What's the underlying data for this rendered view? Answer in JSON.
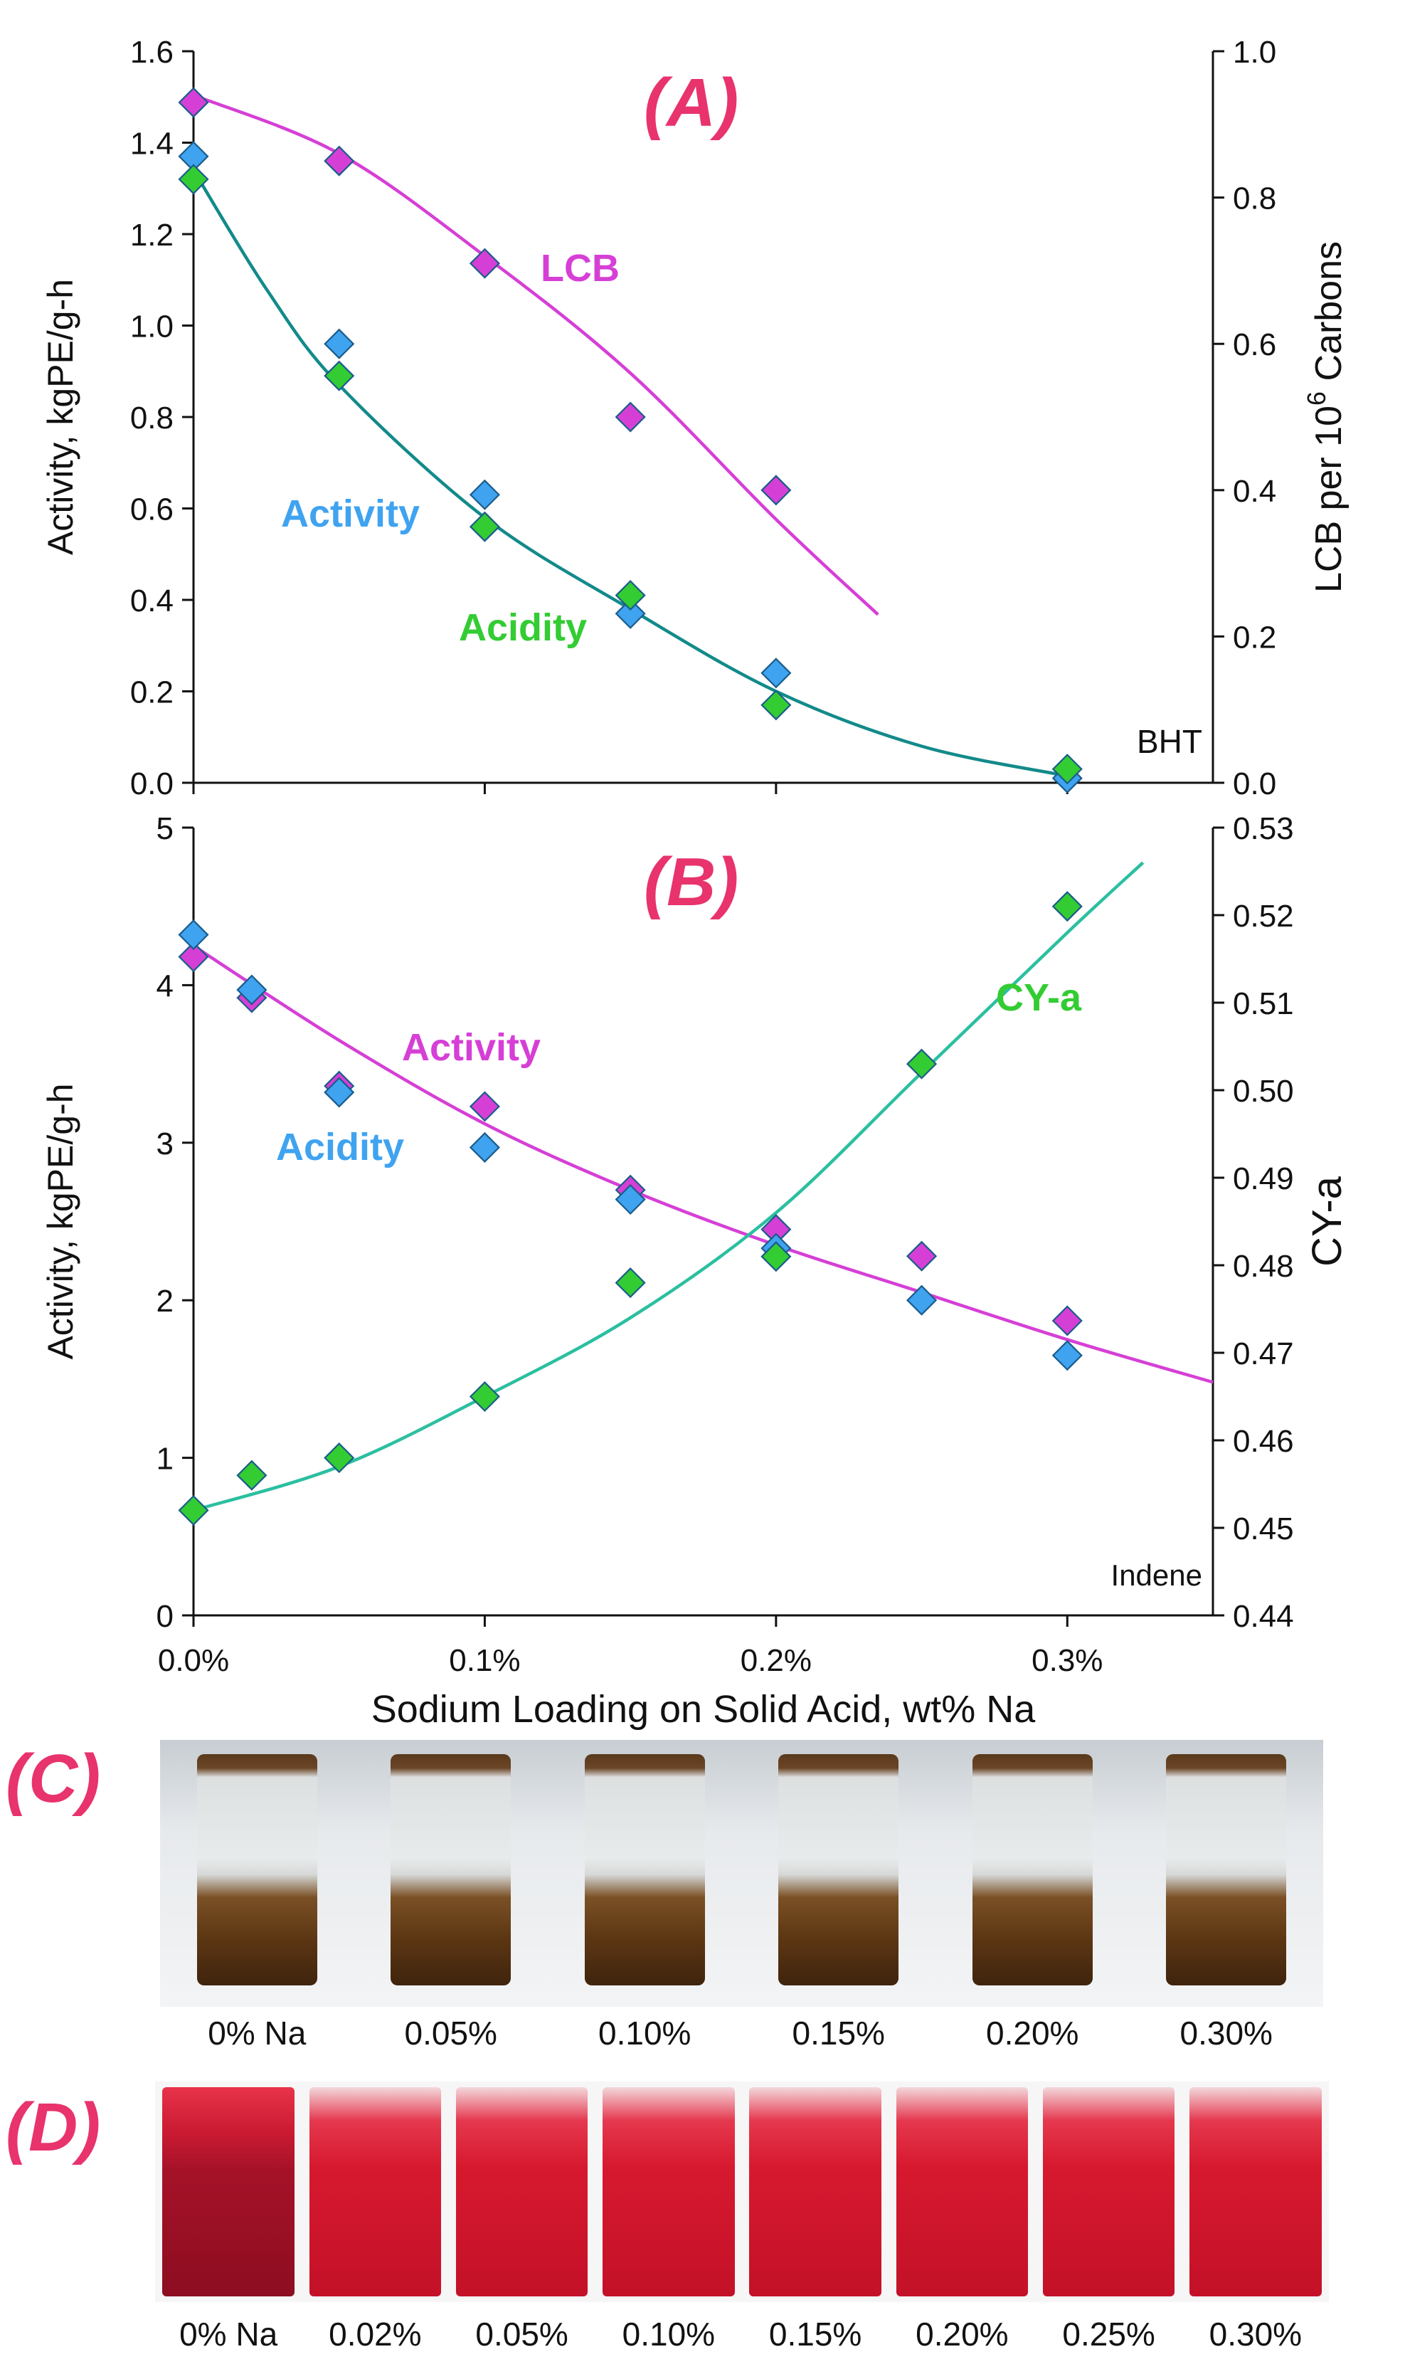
{
  "figure": {
    "panel_letters": {
      "A": "(A)",
      "B": "(B)",
      "C": "(C)",
      "D": "(D)"
    }
  },
  "chart_data": [
    {
      "id": "A",
      "type": "scatter",
      "xlabel": "",
      "ylabel_left": "Activity, kgPE/g-h",
      "ylabel_right": "LCB per 10^6 Carbons",
      "ylim_left": [
        0,
        1.6
      ],
      "ylim_right": [
        0,
        1.0
      ],
      "xlim": [
        0,
        0.35
      ],
      "xticks": [
        0,
        0.1,
        0.2,
        0.3
      ],
      "yticks_left": [
        "0.0",
        "0.2",
        "0.4",
        "0.6",
        "0.8",
        "1.0",
        "1.2",
        "1.4",
        "1.6"
      ],
      "yticks_right": [
        "0.0",
        "0.2",
        "0.4",
        "0.6",
        "0.8",
        "1.0"
      ],
      "corner_label": "BHT",
      "series": [
        {
          "name": "LCB",
          "axis": "right",
          "color": "#d63fd6",
          "x": [
            0,
            0.05,
            0.1,
            0.15,
            0.2
          ],
          "y": [
            0.93,
            0.85,
            0.71,
            0.5,
            0.4
          ],
          "fit": {
            "x": [
              0,
              0.05,
              0.1,
              0.15,
              0.2,
              0.235
            ],
            "y": [
              0.94,
              0.86,
              0.72,
              0.56,
              0.36,
              0.23
            ]
          }
        },
        {
          "name": "Activity",
          "axis": "left",
          "color": "#3fa3f0",
          "x": [
            0,
            0.05,
            0.1,
            0.15,
            0.2,
            0.3
          ],
          "y": [
            1.37,
            0.96,
            0.63,
            0.37,
            0.24,
            0.01
          ]
        },
        {
          "name": "Acidity",
          "axis": "left",
          "color": "#33cc33",
          "x": [
            0,
            0.05,
            0.1,
            0.15,
            0.2,
            0.3
          ],
          "y": [
            1.32,
            0.89,
            0.56,
            0.41,
            0.17,
            0.03
          ],
          "fit": {
            "x": [
              0,
              0.025,
              0.05,
              0.1,
              0.15,
              0.2,
              0.25,
              0.3
            ],
            "y": [
              1.34,
              1.08,
              0.87,
              0.58,
              0.38,
              0.2,
              0.08,
              0.015
            ]
          }
        }
      ],
      "labels": {
        "LCB": "LCB",
        "Activity": "Activity",
        "Acidity": "Acidity"
      }
    },
    {
      "id": "B",
      "type": "scatter",
      "xlabel": "Sodium Loading on Solid Acid, wt% Na",
      "ylabel_left": "Activity, kgPE/g-h",
      "ylabel_right": "CY-a",
      "ylim_left": [
        0,
        5
      ],
      "ylim_right": [
        0.44,
        0.53
      ],
      "xlim": [
        0,
        0.35
      ],
      "xticks": [
        0,
        0.1,
        0.2,
        0.3
      ],
      "xtick_labels": [
        "0.0%",
        "0.1%",
        "0.2%",
        "0.3%"
      ],
      "yticks_left": [
        "0",
        "1",
        "2",
        "3",
        "4",
        "5"
      ],
      "yticks_right": [
        "0.44",
        "0.45",
        "0.46",
        "0.47",
        "0.48",
        "0.49",
        "0.50",
        "0.51",
        "0.52",
        "0.53"
      ],
      "corner_label": "Indene",
      "series": [
        {
          "name": "Activity",
          "axis": "left",
          "color": "#d63fd6",
          "x": [
            0,
            0.02,
            0.05,
            0.1,
            0.15,
            0.2,
            0.25,
            0.3
          ],
          "y": [
            4.18,
            3.92,
            3.36,
            3.23,
            2.7,
            2.45,
            2.28,
            1.87
          ],
          "fit": {
            "x": [
              0,
              0.05,
              0.1,
              0.15,
              0.2,
              0.25,
              0.3,
              0.35
            ],
            "y": [
              4.25,
              3.65,
              3.12,
              2.7,
              2.35,
              2.05,
              1.75,
              1.48
            ]
          }
        },
        {
          "name": "Acidity",
          "axis": "left",
          "color": "#3fa3f0",
          "x": [
            0,
            0.02,
            0.05,
            0.1,
            0.15,
            0.2,
            0.25,
            0.3
          ],
          "y": [
            4.32,
            3.97,
            3.32,
            2.97,
            2.64,
            2.33,
            2.0,
            1.65
          ]
        },
        {
          "name": "CY-a",
          "axis": "right",
          "color": "#33cc33",
          "x": [
            0,
            0.02,
            0.05,
            0.1,
            0.15,
            0.2,
            0.25,
            0.3
          ],
          "y": [
            0.452,
            0.456,
            0.458,
            0.465,
            0.478,
            0.481,
            0.503,
            0.521
          ],
          "fit": {
            "x": [
              0,
              0.05,
              0.1,
              0.15,
              0.2,
              0.25,
              0.3,
              0.326
            ],
            "y": [
              0.452,
              0.457,
              0.465,
              0.474,
              0.486,
              0.502,
              0.518,
              0.526
            ]
          }
        }
      ],
      "labels": {
        "Activity": "Activity",
        "Acidity": "Acidity",
        "CY-a": "CY-a"
      }
    }
  ],
  "photos": {
    "C": {
      "labels": [
        "0% Na",
        "0.05%",
        "0.10%",
        "0.15%",
        "0.20%",
        "0.30%"
      ]
    },
    "D": {
      "labels": [
        "0% Na",
        "0.02%",
        "0.05%",
        "0.10%",
        "0.15%",
        "0.20%",
        "0.25%",
        "0.30%"
      ]
    }
  },
  "colors": {
    "magenta": "#d63fd6",
    "blue": "#3fa3f0",
    "green": "#33cc33",
    "teal_fit": "#138a8a",
    "panel_letter": "#e8336d",
    "fit_cyan": "#2bbfa0"
  }
}
